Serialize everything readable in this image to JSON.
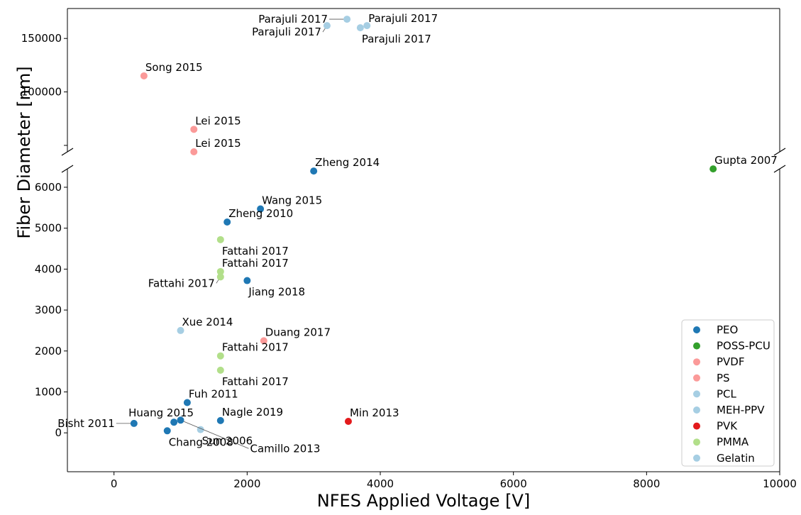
{
  "chart_data": {
    "type": "scatter",
    "xlabel": "NFES Applied Voltage    [V]",
    "ylabel": "Fiber Diameter    [nm]",
    "xlim": [
      -700,
      10000
    ],
    "ylim_lower": [
      -950,
      6450
    ],
    "ylim_upper": [
      44000,
      178000
    ],
    "y_axis_broken": true,
    "grid": false,
    "legend_placement": "lower right",
    "x_ticks": [
      "0",
      "2000",
      "4000",
      "6000",
      "8000",
      "10000"
    ],
    "y_ticks_lower": [
      "0",
      "1000",
      "2000",
      "3000",
      "4000",
      "5000",
      "6000"
    ],
    "y_ticks_upper": [
      "100000",
      "150000"
    ],
    "series": [
      {
        "name": "PEO",
        "color": "#1f78b4"
      },
      {
        "name": "POSS-PCU",
        "color": "#33a02c"
      },
      {
        "name": "PVDF",
        "color": "#fb9a99"
      },
      {
        "name": "PS",
        "color": "#fb9a99"
      },
      {
        "name": "PCL",
        "color": "#a6cee3"
      },
      {
        "name": "MEH-PPV",
        "color": "#a6cee3"
      },
      {
        "name": "PVK",
        "color": "#e31a1c"
      },
      {
        "name": "PMMA",
        "color": "#b2df8a"
      },
      {
        "name": "Gelatin",
        "color": "#a6cee3"
      }
    ],
    "points": [
      {
        "label": "Parajuli 2017",
        "series": "PCL",
        "x": 3500,
        "y": 168000,
        "pos": "left"
      },
      {
        "label": "Parajuli 2017",
        "series": "PCL",
        "x": 3800,
        "y": 162000,
        "pos": "right"
      },
      {
        "label": "Parajuli 2017",
        "series": "PCL",
        "x": 3200,
        "y": 162000,
        "pos": "left-below"
      },
      {
        "label": "Parajuli 2017",
        "series": "PCL",
        "x": 3700,
        "y": 160000,
        "pos": "below"
      },
      {
        "label": "Song 2015",
        "series": "PVDF",
        "x": 450,
        "y": 115000,
        "pos": "above"
      },
      {
        "label": "Lei 2015",
        "series": "PS",
        "x": 1200,
        "y": 65000,
        "pos": "above"
      },
      {
        "label": "Lei 2015",
        "series": "PS",
        "x": 1200,
        "y": 44000,
        "pos": "above"
      },
      {
        "label": "Zheng 2014",
        "series": "PEO",
        "x": 3000,
        "y": 26000,
        "pos": "above"
      },
      {
        "label": "Gupta 2007",
        "series": "POSS-PCU",
        "x": 9000,
        "y": 28000,
        "pos": "above"
      },
      {
        "label": "Wang 2015",
        "series": "PEO",
        "x": 2200,
        "y": 5470,
        "pos": "above"
      },
      {
        "label": "Zheng 2010",
        "series": "PEO",
        "x": 1700,
        "y": 5150,
        "pos": "above"
      },
      {
        "label": "Fattahi 2017",
        "series": "PMMA",
        "x": 1600,
        "y": 4720,
        "pos": "below"
      },
      {
        "label": "Fattahi 2017",
        "series": "PMMA",
        "x": 1600,
        "y": 3940,
        "pos": "above"
      },
      {
        "label": "Fattahi 2017",
        "series": "PMMA",
        "x": 1600,
        "y": 3810,
        "pos": "left-below"
      },
      {
        "label": "Jiang 2018",
        "series": "PEO",
        "x": 2000,
        "y": 3720,
        "pos": "below"
      },
      {
        "label": "Xue 2014",
        "series": "Gelatin",
        "x": 1000,
        "y": 2500,
        "pos": "above"
      },
      {
        "label": "Duang 2017",
        "series": "PVDF",
        "x": 2250,
        "y": 2250,
        "pos": "above"
      },
      {
        "label": "Fattahi 2017",
        "series": "PMMA",
        "x": 1600,
        "y": 1880,
        "pos": "above"
      },
      {
        "label": "Fattahi 2017",
        "series": "PMMA",
        "x": 1600,
        "y": 1530,
        "pos": "below"
      },
      {
        "label": "Fuh 2011",
        "series": "PEO",
        "x": 1100,
        "y": 740,
        "pos": "above"
      },
      {
        "label": "Huang 2015",
        "series": "PEO",
        "x": 900,
        "y": 260,
        "pos": "above-left"
      },
      {
        "label": "Bisht 2011",
        "series": "PEO",
        "x": 300,
        "y": 230,
        "pos": "left"
      },
      {
        "label": "Chang 2008",
        "series": "PEO",
        "x": 800,
        "y": 50,
        "pos": "below"
      },
      {
        "label": "Nagle 2019",
        "series": "PEO",
        "x": 1600,
        "y": 300,
        "pos": "above"
      },
      {
        "label": "Sun 2006",
        "series": "MEH-PPV",
        "x": 1300,
        "y": 80,
        "pos": "below"
      },
      {
        "label": "Camillo 2013",
        "series": "PEO",
        "x": 1000,
        "y": 310,
        "pos": "far-below"
      },
      {
        "label": "Min 2013",
        "series": "PVK",
        "x": 3520,
        "y": 280,
        "pos": "above"
      }
    ]
  }
}
